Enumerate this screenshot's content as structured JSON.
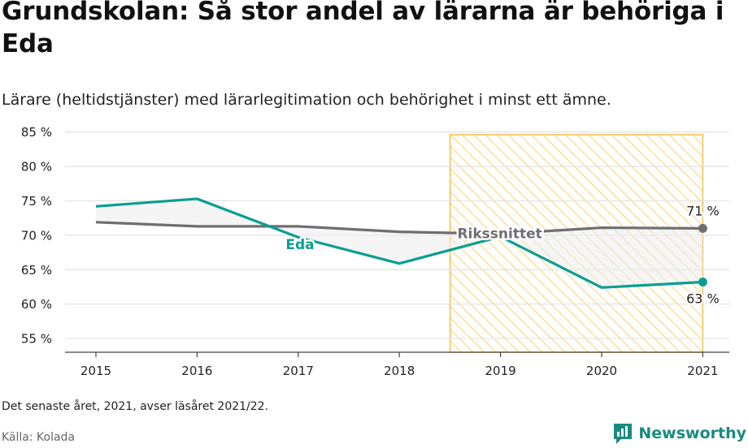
{
  "title": "Grundskolan: Så stor andel av lärarna är behöriga i Eda",
  "subtitle": "Lärare (heltidstjänster) med lärarlegitimation och behörighet i minst ett ämne.",
  "note": "Det senaste året, 2021, avser läsåret 2021/22.",
  "source": "Källa: Kolada",
  "brand": {
    "name": "Newsworthy",
    "icon": "newsworthy-logo-icon"
  },
  "colors": {
    "eda": "#0a9e93",
    "riksnitt": "#6e6e73",
    "highlight_stroke": "#f2c14e",
    "grid": "#e3e3e3",
    "axis": "#444444"
  },
  "chart_data": {
    "type": "line",
    "x": [
      "2015",
      "2016",
      "2017",
      "2018",
      "2019",
      "2020",
      "2021"
    ],
    "series": [
      {
        "name": "Eda",
        "values": [
          74.2,
          75.3,
          69.7,
          65.9,
          69.8,
          62.4,
          63.2
        ]
      },
      {
        "name": "Rikssnittet",
        "values": [
          71.9,
          71.3,
          71.3,
          70.5,
          70.2,
          71.1,
          71.0
        ]
      }
    ],
    "y_ticks": [
      "55 %",
      "60 %",
      "65 %",
      "70 %",
      "75 %",
      "80 %",
      "85 %"
    ],
    "ylim": [
      53,
      86.5
    ],
    "highlight_range": [
      "2019",
      "2021"
    ],
    "end_labels": {
      "Rikssnittet": "71 %",
      "Eda": "63 %"
    },
    "grid": true,
    "legend": "inline labels"
  }
}
